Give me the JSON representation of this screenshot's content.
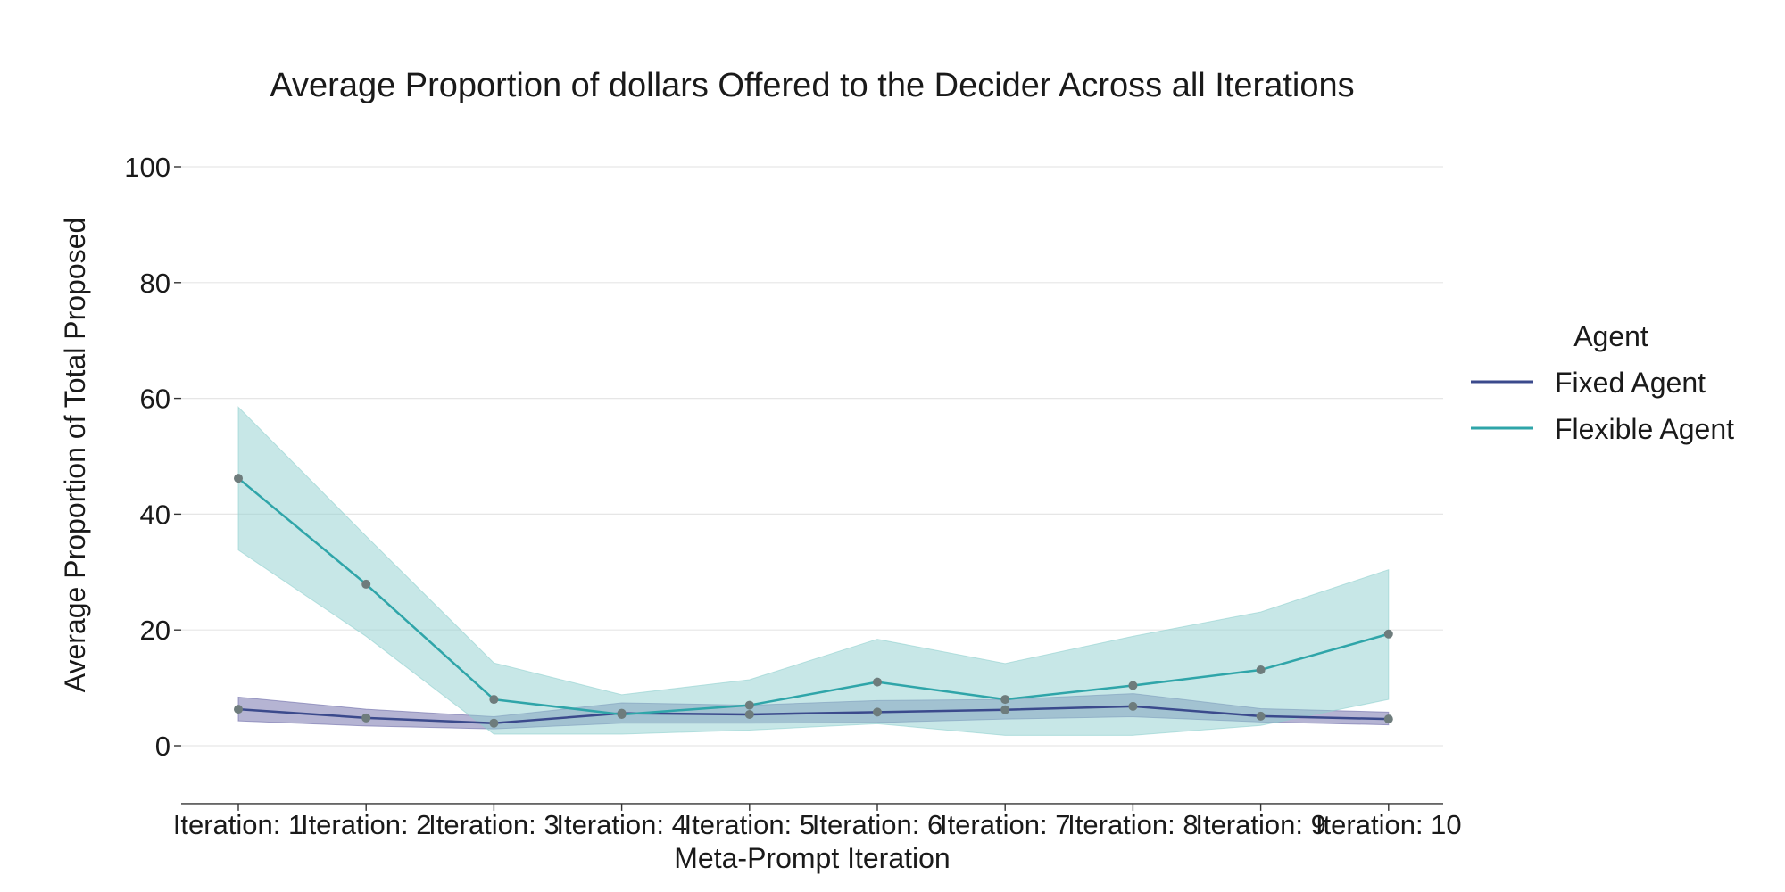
{
  "chart_data": {
    "type": "line",
    "title": "Average Proportion of dollars Offered to the Decider Across all Iterations",
    "xlabel": "Meta-Prompt Iteration",
    "ylabel": "Average Proportion of Total Proposed",
    "categories": [
      "Iteration: 1",
      "Iteration: 2",
      "Iteration: 3",
      "Iteration: 4",
      "Iteration: 5",
      "Iteration: 6",
      "Iteration: 7",
      "Iteration: 8",
      "Iteration: 9",
      "Iteration: 10"
    ],
    "y_ticks": [
      0,
      20,
      40,
      60,
      80,
      100
    ],
    "ylim": [
      -10,
      110
    ],
    "grid": "horizontal",
    "legend": {
      "title": "Agent",
      "placement": "right"
    },
    "series": [
      {
        "name": "Fixed Agent",
        "color": "#3b4a8c",
        "band_color": "#6c6aa8",
        "values": [
          6.3,
          4.8,
          3.9,
          5.6,
          5.4,
          5.8,
          6.2,
          6.8,
          5.1,
          4.6
        ],
        "lower": [
          4.3,
          3.4,
          2.9,
          3.9,
          3.9,
          4.0,
          4.6,
          5.0,
          4.1,
          3.6
        ],
        "upper": [
          8.4,
          6.3,
          5.0,
          7.4,
          7.0,
          7.8,
          8.0,
          9.0,
          6.4,
          5.8
        ]
      },
      {
        "name": "Flexible Agent",
        "color": "#2fa5a9",
        "band_color": "#8fd0cf",
        "values": [
          46.2,
          27.9,
          8.0,
          5.4,
          7.0,
          11.0,
          8.0,
          10.4,
          13.1,
          19.3
        ],
        "lower": [
          33.8,
          18.9,
          2.0,
          2.0,
          2.7,
          3.8,
          1.8,
          1.8,
          3.5,
          8.0
        ],
        "upper": [
          58.5,
          36.2,
          14.3,
          8.8,
          11.4,
          18.4,
          14.2,
          18.9,
          23.1,
          30.4
        ]
      }
    ],
    "marker_color": "#6e7c7c"
  }
}
